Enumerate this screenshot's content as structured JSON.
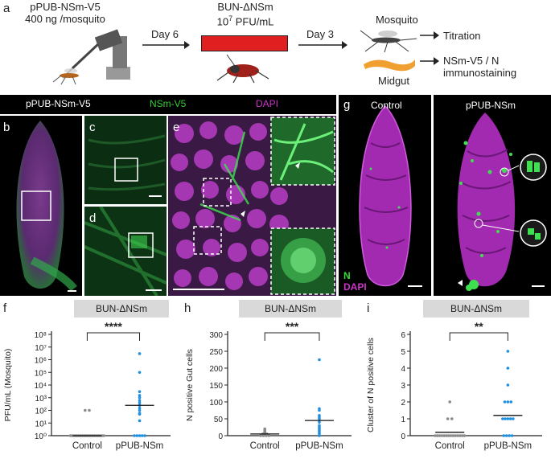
{
  "panel_a": {
    "letter": "a",
    "injection_line1": "pPUB-NSm-V5",
    "injection_line2": "400 ng /mosquito",
    "day6": "Day 6",
    "virus_line1": "BUN-ΔNSm",
    "virus_line2_prefix": "10",
    "virus_line2_exp": "7",
    "virus_line2_suffix": " PFU/mL",
    "day3": "Day 3",
    "mosquito_label": "Mosquito",
    "midgut_label": "Midgut",
    "out1": "Titration",
    "out2_line1": "NSm-V5 / N",
    "out2_line2": "immunostaining"
  },
  "microscopy_header": {
    "left": "pPUB-NSm-V5",
    "mid": "NSm-V5",
    "right": "DAPI",
    "colors": {
      "left": "#ffffff",
      "mid": "#33cc33",
      "right": "#cc33cc"
    }
  },
  "panels_bcde": {
    "b": "b",
    "c": "c",
    "d": "d",
    "e": "e"
  },
  "panel_g": {
    "letter": "g",
    "control": "Control",
    "treated": "pPUB-NSm",
    "legend_n": "N",
    "legend_dapi": "DAPI"
  },
  "colors": {
    "magenta": "#c020c8",
    "green": "#2ecc2e",
    "blue_points": "#1f8fe0",
    "grey_points": "#8a8a8a",
    "grey_bar": "#d9d9d9"
  },
  "chart_data": [
    {
      "panel": "f",
      "type": "scatter",
      "header": "BUN-ΔNSm",
      "ylabel": "PFU/mL (Mosquito)",
      "yscale": "log",
      "ylim": [
        1,
        100000000
      ],
      "yticks": [
        "10⁰",
        "10¹",
        "10²",
        "10³",
        "10⁴",
        "10⁵",
        "10⁶",
        "10⁷",
        "10⁸"
      ],
      "categories": [
        "Control",
        "pPUB-NSm"
      ],
      "series": [
        {
          "values": [
            1,
            1,
            1,
            1,
            1,
            1,
            1,
            1,
            1,
            1,
            1,
            1,
            1,
            1,
            1,
            1,
            1,
            1,
            100,
            100
          ]
        },
        {
          "values": [
            3000000,
            100000,
            3000,
            1500,
            1000,
            600,
            400,
            250,
            150,
            100,
            60,
            50,
            15,
            1,
            1,
            1,
            1,
            1
          ]
        }
      ],
      "medians": [
        1,
        250
      ],
      "significance": "****"
    },
    {
      "panel": "h",
      "type": "scatter",
      "header": "BUN-ΔNSm",
      "ylabel": "N positive Gut cells",
      "ylim": [
        0,
        300
      ],
      "yticks": [
        0,
        50,
        100,
        150,
        200,
        250,
        300
      ],
      "categories": [
        "Control",
        "pPUB-NSm"
      ],
      "series": [
        {
          "values": [
            0,
            0,
            0,
            0,
            2,
            2,
            3,
            3,
            4,
            5,
            5,
            6,
            8,
            10,
            12,
            15,
            20
          ]
        },
        {
          "values": [
            225,
            80,
            75,
            60,
            55,
            50,
            40,
            30,
            25,
            20,
            15,
            10,
            5,
            0
          ]
        }
      ],
      "medians": [
        5,
        45
      ],
      "significance": "***"
    },
    {
      "panel": "i",
      "type": "scatter",
      "header": "BUN-ΔNSm",
      "ylabel": "Cluster of N positive cells",
      "ylim": [
        0,
        6
      ],
      "yticks": [
        0,
        1,
        2,
        3,
        4,
        5,
        6
      ],
      "categories": [
        "Control",
        "pPUB-NSm"
      ],
      "series": [
        {
          "values": [
            0,
            0,
            0,
            0,
            0,
            0,
            0,
            0,
            0,
            0,
            0,
            0,
            0,
            0,
            1,
            1,
            2
          ]
        },
        {
          "values": [
            5,
            4,
            3,
            2,
            2,
            2,
            1,
            1,
            1,
            1,
            1,
            0,
            0,
            0,
            0
          ]
        }
      ],
      "medians": [
        0.2,
        1.2
      ],
      "significance": "**"
    }
  ]
}
